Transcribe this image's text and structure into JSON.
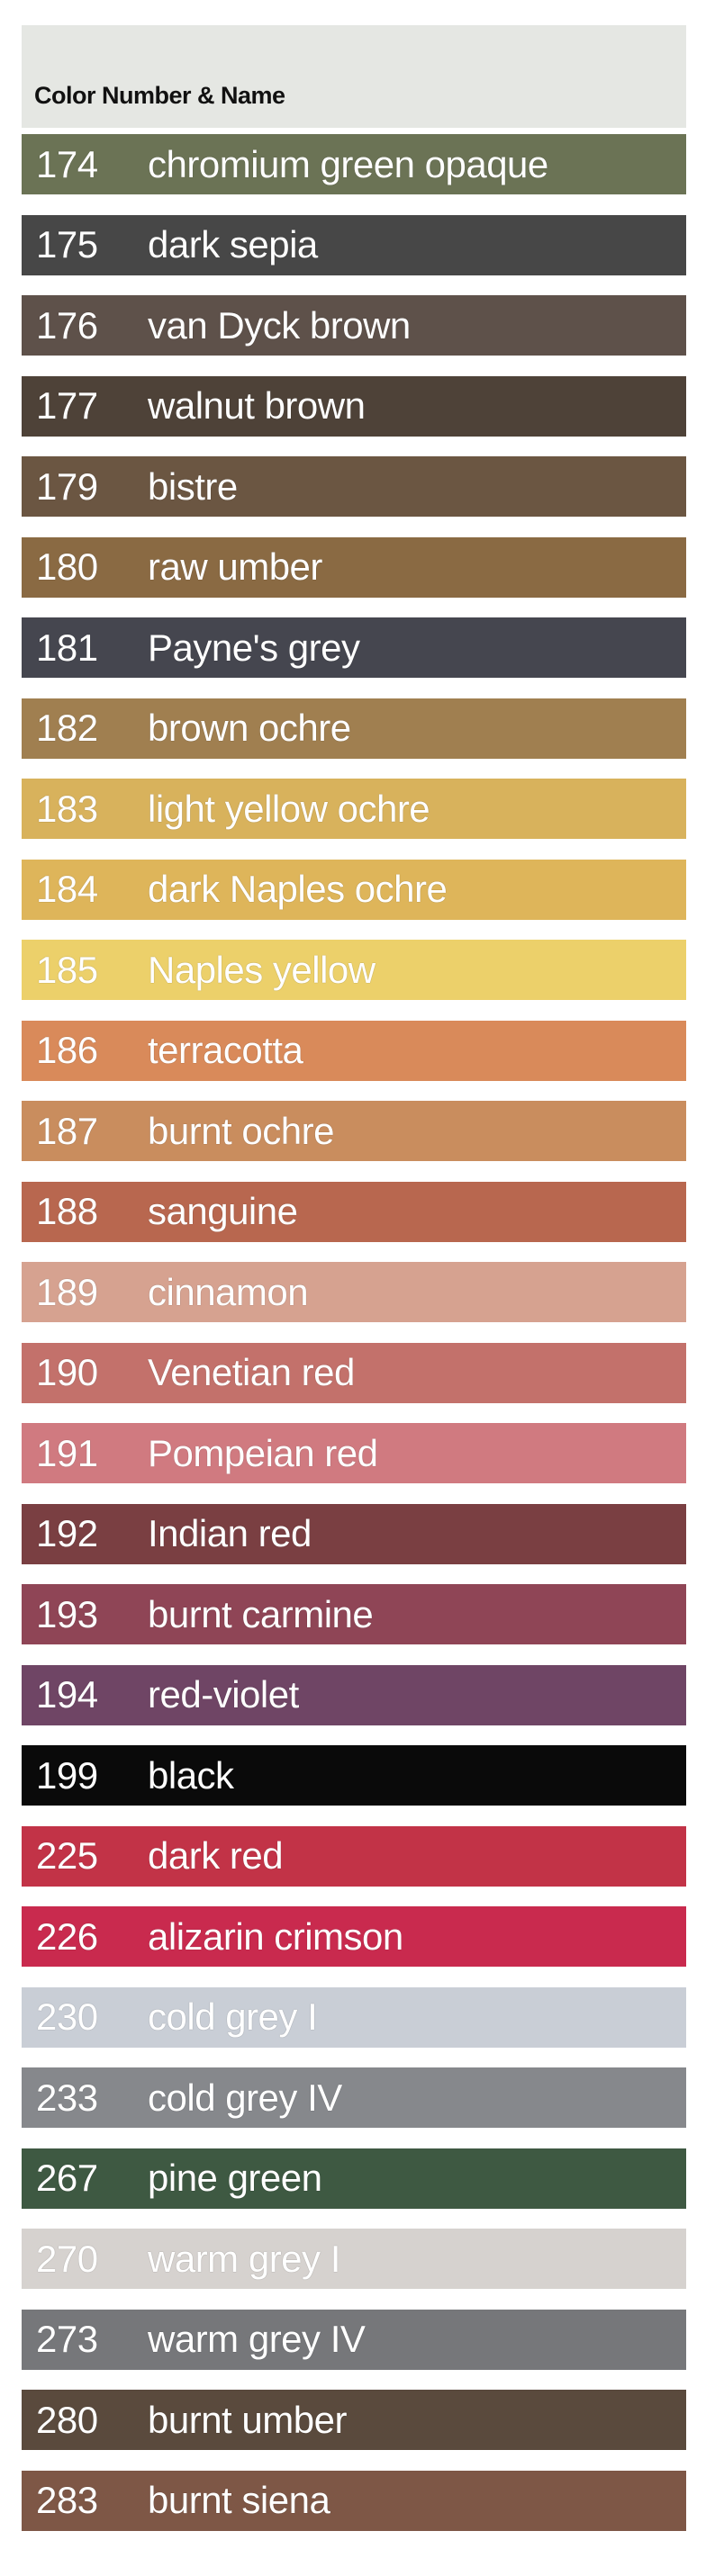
{
  "header": {
    "title": "Color Number & Name"
  },
  "colors": [
    {
      "number": "174",
      "name": "chromium green opaque",
      "swatch": "#6b7355"
    },
    {
      "number": "175",
      "name": "dark sepia",
      "swatch": "#474747"
    },
    {
      "number": "176",
      "name": "van Dyck brown",
      "swatch": "#5e514a"
    },
    {
      "number": "177",
      "name": "walnut brown",
      "swatch": "#4e4238"
    },
    {
      "number": "179",
      "name": "bistre",
      "swatch": "#6b5642"
    },
    {
      "number": "180",
      "name": "raw umber",
      "swatch": "#8a6a43"
    },
    {
      "number": "181",
      "name": "Payne's grey",
      "swatch": "#45464f"
    },
    {
      "number": "182",
      "name": "brown ochre",
      "swatch": "#a07f50"
    },
    {
      "number": "183",
      "name": "light yellow ochre",
      "swatch": "#d8b25c"
    },
    {
      "number": "184",
      "name": "dark Naples ochre",
      "swatch": "#deb55a"
    },
    {
      "number": "185",
      "name": "Naples yellow",
      "swatch": "#ecd06a"
    },
    {
      "number": "186",
      "name": "terracotta",
      "swatch": "#d98a5a"
    },
    {
      "number": "187",
      "name": "burnt ochre",
      "swatch": "#c98d5e"
    },
    {
      "number": "188",
      "name": "sanguine",
      "swatch": "#b8674f"
    },
    {
      "number": "189",
      "name": "cinnamon",
      "swatch": "#d6a290"
    },
    {
      "number": "190",
      "name": "Venetian red",
      "swatch": "#c3716b"
    },
    {
      "number": "191",
      "name": "Pompeian red",
      "swatch": "#d07a80"
    },
    {
      "number": "192",
      "name": "Indian red",
      "swatch": "#7a3f42"
    },
    {
      "number": "193",
      "name": "burnt carmine",
      "swatch": "#8f4556"
    },
    {
      "number": "194",
      "name": "red-violet",
      "swatch": "#6f4565"
    },
    {
      "number": "199",
      "name": "black",
      "swatch": "#0a0a0a"
    },
    {
      "number": "225",
      "name": "dark red",
      "swatch": "#c23347"
    },
    {
      "number": "226",
      "name": "alizarin crimson",
      "swatch": "#c92a4e"
    },
    {
      "number": "230",
      "name": "cold grey I",
      "swatch": "#c9ced6"
    },
    {
      "number": "233",
      "name": "cold grey IV",
      "swatch": "#86888c"
    },
    {
      "number": "267",
      "name": "pine green",
      "swatch": "#3e5942"
    },
    {
      "number": "270",
      "name": "warm grey I",
      "swatch": "#d6d2cf"
    },
    {
      "number": "273",
      "name": "warm grey IV",
      "swatch": "#76777a"
    },
    {
      "number": "280",
      "name": "burnt umber",
      "swatch": "#5a4a3d"
    },
    {
      "number": "283",
      "name": "burnt siena",
      "swatch": "#7e5746"
    }
  ]
}
